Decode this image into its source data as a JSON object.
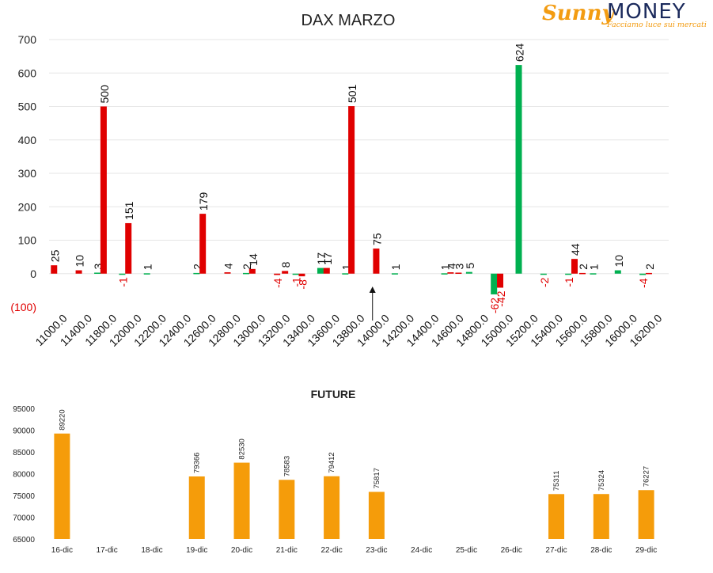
{
  "logo": {
    "brand_left": "Sunny",
    "brand_right": "MONEY",
    "tagline": "Facciamo luce sui mercati",
    "colors": {
      "sunny": "#f39c12",
      "money": "#1b2a5c"
    }
  },
  "chart_data": [
    {
      "type": "bar",
      "title": "DAX MARZO",
      "ylim": [
        -100,
        700
      ],
      "yticks": [
        "(100)",
        "0",
        "100",
        "200",
        "300",
        "400",
        "500",
        "600",
        "700"
      ],
      "categories": [
        "11000.0",
        "11400.0",
        "11800.0",
        "12000.0",
        "12200.0",
        "12400.0",
        "12600.0",
        "12800.0",
        "13000.0",
        "13200.0",
        "13400.0",
        "13600.0",
        "13800.0",
        "14000.0",
        "14200.0",
        "14400.0",
        "14600.0",
        "14800.0",
        "15000.0",
        "15200.0",
        "15400.0",
        "15600.0",
        "15800.0",
        "16000.0",
        "16200.0"
      ],
      "grid": true,
      "colors": {
        "red": "#e00000",
        "green": "#00b050",
        "negative_label": "#e00000"
      },
      "series": [
        {
          "color": "green",
          "values": [
            {
              "x": "11800.0",
              "y": 3,
              "label": "3"
            },
            {
              "x": "12000.0",
              "y": -1,
              "label": "-1"
            },
            {
              "x": "12200.0",
              "y": 1,
              "label": "1"
            },
            {
              "x": "12600.0",
              "y": 2,
              "label": "2"
            },
            {
              "x": "13000.0",
              "y": 2,
              "label": "2"
            },
            {
              "x": "13400.0",
              "y": -1,
              "label": "-1"
            },
            {
              "x": "13600.0",
              "y": 17,
              "label": "17"
            },
            {
              "x": "13800.0",
              "y": 1,
              "label": "1"
            },
            {
              "x": "14200.0",
              "y": 1,
              "label": "1"
            },
            {
              "x": "14600.0",
              "y": 1,
              "label": "1"
            },
            {
              "x": "14800.0",
              "y": 5,
              "label": "5"
            },
            {
              "x": "15000.0",
              "y": -62,
              "label": "-62"
            },
            {
              "x": "15200.0",
              "y": 624,
              "label": "624"
            },
            {
              "x": "15400.0",
              "y": -2,
              "label": "-2"
            },
            {
              "x": "15600.0",
              "y": -1,
              "label": "-1"
            },
            {
              "x": "15800.0",
              "y": 1,
              "label": "1"
            },
            {
              "x": "16000.0",
              "y": 10,
              "label": "10"
            },
            {
              "x": "16200.0",
              "y": -4,
              "label": "-4"
            }
          ]
        },
        {
          "color": "red",
          "values": [
            {
              "x": "11000.0",
              "y": 25,
              "label": "25"
            },
            {
              "x": "11400.0",
              "y": 10,
              "label": "10"
            },
            {
              "x": "11800.0",
              "y": 500,
              "label": "500"
            },
            {
              "x": "12000.0",
              "y": 151,
              "label": "151"
            },
            {
              "x": "12600.0",
              "y": 179,
              "label": "179"
            },
            {
              "x": "12800.0",
              "y": 4,
              "label": "4"
            },
            {
              "x": "13000.0",
              "y": 14,
              "label": "14"
            },
            {
              "x": "13200.0",
              "y": -4,
              "label": "-4"
            },
            {
              "x": "13200.0",
              "y": 8,
              "label": "8"
            },
            {
              "x": "13400.0",
              "y": -8,
              "label": "-8"
            },
            {
              "x": "13600.0",
              "y": 17,
              "label": "17"
            },
            {
              "x": "13800.0",
              "y": 501,
              "label": "501"
            },
            {
              "x": "14000.0",
              "y": 75,
              "label": "75"
            },
            {
              "x": "14600.0",
              "y": 4,
              "label": "4"
            },
            {
              "x": "14600.0",
              "y": 3,
              "label": "3"
            },
            {
              "x": "15000.0",
              "y": -42,
              "label": "-42"
            },
            {
              "x": "15600.0",
              "y": 44,
              "label": "44"
            },
            {
              "x": "15600.0",
              "y": 2,
              "label": "2"
            },
            {
              "x": "16200.0",
              "y": 2,
              "label": "2"
            }
          ]
        }
      ]
    },
    {
      "type": "bar",
      "title": "FUTURE",
      "ylim": [
        65000,
        95000
      ],
      "yticks": [
        "65000",
        "70000",
        "75000",
        "80000",
        "85000",
        "90000",
        "95000"
      ],
      "categories": [
        "16-dic",
        "17-dic",
        "18-dic",
        "19-dic",
        "20-dic",
        "21-dic",
        "22-dic",
        "23-dic",
        "24-dic",
        "25-dic",
        "26-dic",
        "27-dic",
        "28-dic",
        "29-dic"
      ],
      "values": [
        89220,
        null,
        null,
        79366,
        82530,
        78583,
        79412,
        75817,
        null,
        null,
        null,
        75311,
        75324,
        76227
      ],
      "labels": [
        "89220",
        "",
        "",
        "79366",
        "82530",
        "78583",
        "79412",
        "75817",
        "",
        "",
        "",
        "75311",
        "75324",
        "76227"
      ],
      "color": "#f59c0a",
      "grid": false
    }
  ]
}
